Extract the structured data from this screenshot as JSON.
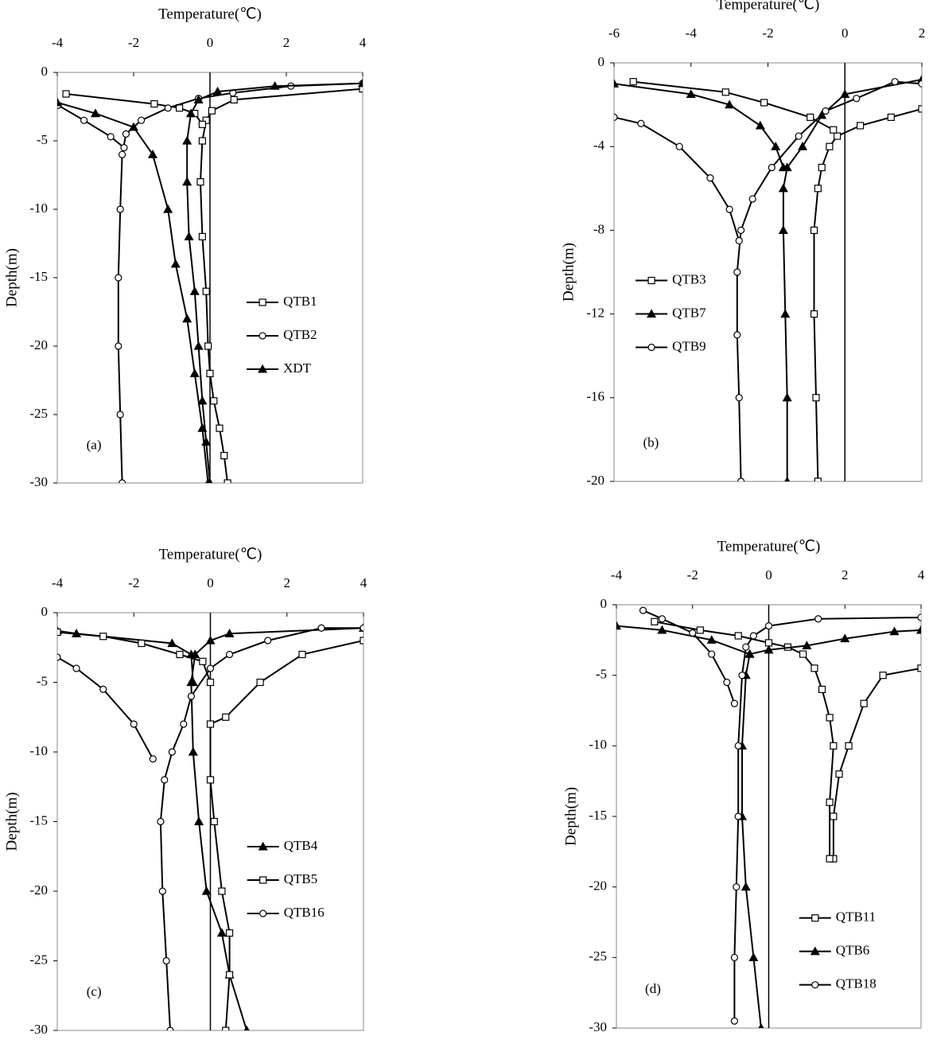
{
  "chart_data": [
    {
      "type": "line",
      "x_label": "Temperature(℃)",
      "y_label": "Depth(m)",
      "annotation": "(a)",
      "xlim": [
        -4,
        4
      ],
      "xticks": [
        -4,
        -2,
        0,
        2,
        4
      ],
      "ylim": [
        -30,
        0
      ],
      "yticks": [
        0,
        -5,
        -10,
        -15,
        -20,
        -25,
        -30
      ],
      "legend": "center-right",
      "series": [
        {
          "name": "QTB1",
          "marker": "square",
          "color": "#000000",
          "x": [
            4,
            0.63,
            0.05,
            -0.1,
            -0.2,
            -0.25,
            -0.2,
            -0.1,
            -0.05,
            0.0,
            0.1,
            0.25,
            0.37,
            0.46,
            null,
            -3.77,
            -1.46,
            -0.8,
            -0.4,
            -0.2
          ],
          "values": [
            -1.2,
            -2.0,
            -2.8,
            -3.5,
            -5,
            -8,
            -12,
            -16,
            -20,
            -22,
            -24,
            -26,
            -28,
            -30,
            null,
            -1.57,
            -2.3,
            -2.6,
            -3.0,
            -3.8
          ]
        },
        {
          "name": "QTB2",
          "marker": "circle",
          "color": "#000000",
          "x": [
            4,
            2.12,
            0.6,
            -0.3,
            -1.1,
            -1.8,
            -2.2,
            -2.3,
            -2.35,
            -2.4,
            -2.4,
            -2.35,
            -2.3,
            null,
            -3.98,
            -3.3,
            -2.6,
            -2.25
          ],
          "values": [
            -0.8,
            -1.0,
            -1.5,
            -1.9,
            -2.6,
            -3.5,
            -4.5,
            -6,
            -10,
            -15,
            -20,
            -25,
            -30,
            null,
            -2.4,
            -3.5,
            -4.7,
            -5.5
          ]
        },
        {
          "name": "XDT",
          "marker": "triangle",
          "color": "#000000",
          "x": [
            4,
            1.7,
            0.2,
            -0.3,
            -0.5,
            -0.6,
            -0.6,
            -0.55,
            -0.4,
            -0.3,
            -0.2,
            -0.1,
            0.0,
            null,
            -4,
            -3,
            -2,
            -1.5,
            -1.1,
            -0.9,
            -0.6,
            -0.4,
            -0.2,
            -0.05
          ],
          "values": [
            -0.8,
            -1.0,
            -1.4,
            -2,
            -3,
            -5,
            -8,
            -12,
            -16,
            -20,
            -24,
            -27,
            -30,
            null,
            -2.2,
            -3,
            -4,
            -6,
            -10,
            -14,
            -18,
            -22,
            -26,
            -30
          ]
        }
      ]
    },
    {
      "type": "line",
      "x_label": "Temperature(℃)",
      "y_label": "Depth(m)",
      "annotation": "(b)",
      "xlim": [
        -6,
        2
      ],
      "xticks": [
        -6,
        -4,
        -2,
        0,
        2
      ],
      "ylim": [
        -20,
        0
      ],
      "yticks": [
        0,
        -4,
        -8,
        -12,
        -16,
        -20
      ],
      "legend": "center-left",
      "series": [
        {
          "name": "QTB3",
          "marker": "square",
          "color": "#000000",
          "x": [
            2,
            1.2,
            0.4,
            -0.2,
            -0.4,
            -0.6,
            -0.7,
            -0.8,
            -0.8,
            -0.75,
            -0.7,
            null,
            -5.5,
            -3.1,
            -2.1,
            -0.9,
            -0.3
          ],
          "values": [
            -2.2,
            -2.6,
            -3.0,
            -3.5,
            -4,
            -5,
            -6,
            -8,
            -12,
            -16,
            -20,
            null,
            -0.9,
            -1.4,
            -1.9,
            -2.6,
            -3.2
          ]
        },
        {
          "name": "QTB7",
          "marker": "triangle",
          "color": "#000000",
          "x": [
            2,
            0,
            -0.6,
            -1.1,
            -1.5,
            -1.6,
            -1.6,
            -1.55,
            -1.5,
            -1.5,
            null,
            -6,
            -4,
            -3,
            -2.2,
            -1.8,
            -1.6
          ],
          "values": [
            -0.8,
            -1.5,
            -2.5,
            -4,
            -5,
            -6,
            -8,
            -12,
            -16,
            -20,
            null,
            -1.0,
            -1.5,
            -2,
            -3,
            -4,
            -5
          ]
        },
        {
          "name": "QTB9",
          "marker": "circle",
          "color": "#000000",
          "x": [
            2,
            1.3,
            0.3,
            -0.5,
            -1.2,
            -1.9,
            -2.4,
            -2.7,
            -2.8,
            -2.8,
            -2.75,
            -2.7,
            null,
            -6,
            -5.3,
            -4.3,
            -3.5,
            -3.0,
            -2.75
          ],
          "values": [
            -1.0,
            -0.9,
            -1.7,
            -2.3,
            -3.5,
            -5,
            -6.5,
            -8,
            -10,
            -13,
            -16,
            -20,
            null,
            -2.6,
            -2.9,
            -4,
            -5.5,
            -7,
            -8.5
          ]
        }
      ]
    },
    {
      "type": "line",
      "x_label": "Temperature(℃)",
      "y_label": "Depth(m)",
      "annotation": "(c)",
      "xlim": [
        -4,
        4
      ],
      "xticks": [
        -4,
        -2,
        0,
        2,
        4
      ],
      "ylim": [
        -30,
        0
      ],
      "yticks": [
        0,
        -5,
        -10,
        -15,
        -20,
        -25,
        -30
      ],
      "legend": "center-right",
      "series": [
        {
          "name": "QTB4",
          "marker": "triangle",
          "color": "#000000",
          "x": [
            4,
            0.5,
            0,
            -0.4,
            -0.5,
            -0.45,
            -0.3,
            -0.1,
            0.3,
            0.5,
            0.95,
            null,
            -4,
            -3.5,
            -1.0,
            -0.5,
            -0.45
          ],
          "values": [
            -1.1,
            -1.5,
            -2,
            -3,
            -5,
            -10,
            -15,
            -20,
            -23,
            -26,
            -30,
            null,
            -1.3,
            -1.5,
            -2.2,
            -3,
            -5
          ]
        },
        {
          "name": "QTB5",
          "marker": "square",
          "color": "#000000",
          "x": [
            4,
            2.4,
            1.3,
            0.4,
            0,
            0,
            0.1,
            0.3,
            0.5,
            0.5,
            0.4,
            null,
            -4,
            -2.8,
            -1.8,
            -0.8,
            -0.2,
            0
          ],
          "values": [
            -2,
            -3,
            -5,
            -7.5,
            -8,
            -12,
            -15,
            -20,
            -23,
            -26,
            -30,
            null,
            -1.4,
            -1.7,
            -2.2,
            -3,
            -3.5,
            -5
          ]
        },
        {
          "name": "QTB16",
          "marker": "circle",
          "color": "#000000",
          "x": [
            4,
            2.9,
            1.5,
            0.5,
            0,
            -0.5,
            -0.7,
            -1.0,
            -1.2,
            -1.3,
            -1.25,
            -1.15,
            -1.05,
            null,
            -4,
            -3.5,
            -2.8,
            -2,
            -1.5
          ],
          "values": [
            -1.1,
            -1.1,
            -2,
            -3,
            -4,
            -6,
            -8,
            -10,
            -12,
            -15,
            -20,
            -25,
            -30,
            null,
            -3.2,
            -4,
            -5.5,
            -8,
            -10.5
          ]
        }
      ]
    },
    {
      "type": "line",
      "x_label": "Temperature(℃)",
      "y_label": "Depth(m)",
      "annotation": "(d)",
      "xlim": [
        -4,
        4
      ],
      "xticks": [
        -4,
        -2,
        0,
        2,
        4
      ],
      "ylim": [
        -30,
        0
      ],
      "yticks": [
        0,
        -5,
        -10,
        -15,
        -20,
        -25,
        -30
      ],
      "legend": "lower-right",
      "series": [
        {
          "name": "QTB11",
          "marker": "square",
          "color": "#000000",
          "x": [
            4,
            3,
            2.5,
            2.1,
            1.85,
            1.7,
            1.7,
            null,
            -3,
            -1.8,
            -0.8,
            0,
            0.5,
            0.9,
            1.2,
            1.4,
            1.6,
            1.7,
            1.6,
            1.6
          ],
          "values": [
            -4.5,
            -5,
            -7,
            -10,
            -12,
            -15,
            -18,
            null,
            -1.2,
            -1.8,
            -2.2,
            -2.7,
            -3,
            -3.5,
            -4.5,
            -6,
            -8,
            -10,
            -14,
            -18
          ]
        },
        {
          "name": "QTB6",
          "marker": "triangle",
          "color": "#000000",
          "x": [
            4,
            3.3,
            2,
            1,
            0,
            -0.5,
            -0.6,
            -0.7,
            -0.7,
            -0.6,
            -0.4,
            -0.2,
            null,
            -4,
            -2.8,
            -1.5,
            -0.5
          ],
          "values": [
            -1.8,
            -1.9,
            -2.4,
            -2.9,
            -3.2,
            -3.5,
            -5,
            -10,
            -15,
            -20,
            -25,
            -30,
            null,
            -1.5,
            -1.8,
            -2.5,
            -3.5
          ]
        },
        {
          "name": "QTB18",
          "marker": "circle",
          "color": "#000000",
          "x": [
            4,
            1.3,
            0,
            -0.4,
            -0.6,
            -0.7,
            -0.8,
            -0.8,
            -0.85,
            -0.9,
            -0.9,
            null,
            -3.3,
            -2.8,
            -2,
            -1.5,
            -1.1,
            -0.9
          ],
          "values": [
            -0.9,
            -1,
            -1.5,
            -2.2,
            -3,
            -5,
            -10,
            -15,
            -20,
            -25,
            -29.5,
            null,
            -0.4,
            -1,
            -2,
            -3.5,
            -5.5,
            -7
          ]
        }
      ]
    }
  ]
}
